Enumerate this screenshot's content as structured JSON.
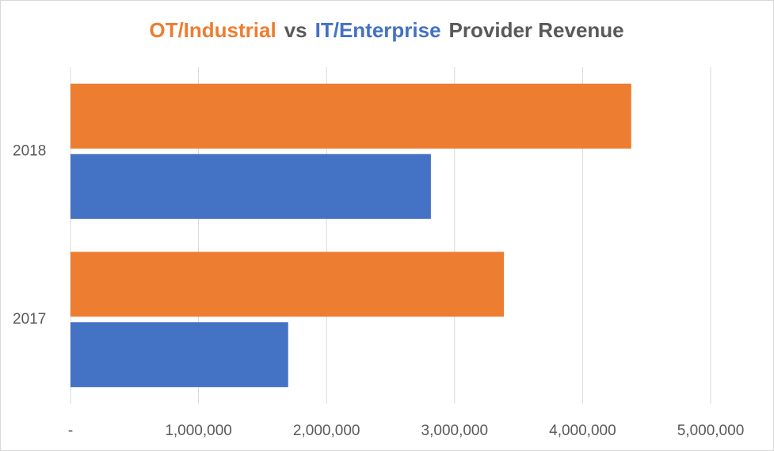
{
  "chart_data": {
    "type": "hbar",
    "title_parts": [
      {
        "text": "OT/Industrial",
        "color": "#ed7d31"
      },
      {
        "text": "vs",
        "color": "#595959"
      },
      {
        "text": "IT/Enterprise",
        "color": "#4472c4"
      },
      {
        "text": "Provider Revenue",
        "color": "#595959"
      }
    ],
    "categories": [
      "2017",
      "2018"
    ],
    "series": [
      {
        "color": "#ed7d31",
        "values": [
          3385000,
          4380000
        ]
      },
      {
        "color": "#4472c4",
        "values": [
          1700000,
          2815000
        ]
      }
    ],
    "xlim": [
      0,
      5000000
    ],
    "xticks": [
      {
        "value": 0,
        "label": "-"
      },
      {
        "value": 1000000,
        "label": "1,000,000"
      },
      {
        "value": 2000000,
        "label": "2,000,000"
      },
      {
        "value": 3000000,
        "label": "3,000,000"
      },
      {
        "value": 4000000,
        "label": "4,000,000"
      },
      {
        "value": 5000000,
        "label": "5,000,000"
      }
    ],
    "grid": true
  }
}
